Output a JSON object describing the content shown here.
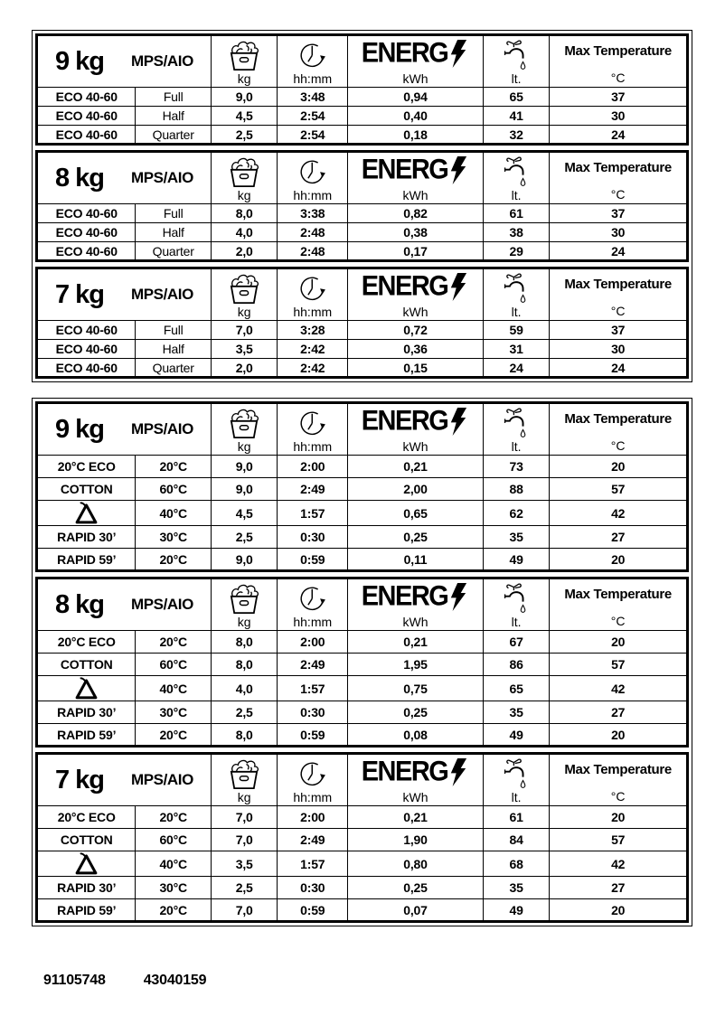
{
  "header_labels": {
    "energy_logo_text": "ENERG",
    "max_temp": "Max Temperature",
    "units": {
      "load": "kg",
      "time": "hh:mm",
      "energy": "kWh",
      "water": "lt.",
      "temp": "°C"
    }
  },
  "icons": {
    "load": "laundry-basket-icon",
    "time": "cycle-duration-clock-icon",
    "energy": "lightning-bolt-icon",
    "water": "water-tap-drop-icon",
    "synthetics": "synthetics-triangle-program-icon"
  },
  "groups": [
    {
      "name": "eco-40-60-tables",
      "tables": [
        {
          "capacity": "9 kg",
          "model": "MPS/AIO",
          "rows": [
            {
              "program": "ECO 40-60",
              "variant": "Full",
              "load": "9,0",
              "time": "3:48",
              "energy": "0,94",
              "water": "65",
              "temp": "37"
            },
            {
              "program": "ECO 40-60",
              "variant": "Half",
              "load": "4,5",
              "time": "2:54",
              "energy": "0,40",
              "water": "41",
              "temp": "30"
            },
            {
              "program": "ECO 40-60",
              "variant": "Quarter",
              "load": "2,5",
              "time": "2:54",
              "energy": "0,18",
              "water": "32",
              "temp": "24"
            }
          ]
        },
        {
          "capacity": "8 kg",
          "model": "MPS/AIO",
          "rows": [
            {
              "program": "ECO 40-60",
              "variant": "Full",
              "load": "8,0",
              "time": "3:38",
              "energy": "0,82",
              "water": "61",
              "temp": "37"
            },
            {
              "program": "ECO 40-60",
              "variant": "Half",
              "load": "4,0",
              "time": "2:48",
              "energy": "0,38",
              "water": "38",
              "temp": "30"
            },
            {
              "program": "ECO 40-60",
              "variant": "Quarter",
              "load": "2,0",
              "time": "2:48",
              "energy": "0,17",
              "water": "29",
              "temp": "24"
            }
          ]
        },
        {
          "capacity": "7 kg",
          "model": "MPS/AIO",
          "rows": [
            {
              "program": "ECO 40-60",
              "variant": "Full",
              "load": "7,0",
              "time": "3:28",
              "energy": "0,72",
              "water": "59",
              "temp": "37"
            },
            {
              "program": "ECO 40-60",
              "variant": "Half",
              "load": "3,5",
              "time": "2:42",
              "energy": "0,36",
              "water": "31",
              "temp": "30"
            },
            {
              "program": "ECO 40-60",
              "variant": "Quarter",
              "load": "2,0",
              "time": "2:42",
              "energy": "0,15",
              "water": "24",
              "temp": "24"
            }
          ]
        }
      ]
    },
    {
      "name": "program-tables",
      "tables": [
        {
          "capacity": "9 kg",
          "model": "MPS/AIO",
          "rows": [
            {
              "program": "20°C ECO",
              "variant": "20°C",
              "load": "9,0",
              "time": "2:00",
              "energy": "0,21",
              "water": "73",
              "temp": "20"
            },
            {
              "program": "COTTON",
              "variant": "60°C",
              "load": "9,0",
              "time": "2:49",
              "energy": "2,00",
              "water": "88",
              "temp": "57"
            },
            {
              "program": "",
              "program_icon": "synthetics-triangle-program-icon",
              "variant": "40°C",
              "load": "4,5",
              "time": "1:57",
              "energy": "0,65",
              "water": "62",
              "temp": "42"
            },
            {
              "program": "RAPID 30’",
              "variant": "30°C",
              "load": "2,5",
              "time": "0:30",
              "energy": "0,25",
              "water": "35",
              "temp": "27"
            },
            {
              "program": "RAPID 59’",
              "variant": "20°C",
              "load": "9,0",
              "time": "0:59",
              "energy": "0,11",
              "water": "49",
              "temp": "20"
            }
          ]
        },
        {
          "capacity": "8 kg",
          "model": "MPS/AIO",
          "rows": [
            {
              "program": "20°C ECO",
              "variant": "20°C",
              "load": "8,0",
              "time": "2:00",
              "energy": "0,21",
              "water": "67",
              "temp": "20"
            },
            {
              "program": "COTTON",
              "variant": "60°C",
              "load": "8,0",
              "time": "2:49",
              "energy": "1,95",
              "water": "86",
              "temp": "57"
            },
            {
              "program": "",
              "program_icon": "synthetics-triangle-program-icon",
              "variant": "40°C",
              "load": "4,0",
              "time": "1:57",
              "energy": "0,75",
              "water": "65",
              "temp": "42"
            },
            {
              "program": "RAPID 30’",
              "variant": "30°C",
              "load": "2,5",
              "time": "0:30",
              "energy": "0,25",
              "water": "35",
              "temp": "27"
            },
            {
              "program": "RAPID 59’",
              "variant": "20°C",
              "load": "8,0",
              "time": "0:59",
              "energy": "0,08",
              "water": "49",
              "temp": "20"
            }
          ]
        },
        {
          "capacity": "7 kg",
          "model": "MPS/AIO",
          "rows": [
            {
              "program": "20°C ECO",
              "variant": "20°C",
              "load": "7,0",
              "time": "2:00",
              "energy": "0,21",
              "water": "61",
              "temp": "20"
            },
            {
              "program": "COTTON",
              "variant": "60°C",
              "load": "7,0",
              "time": "2:49",
              "energy": "1,90",
              "water": "84",
              "temp": "57"
            },
            {
              "program": "",
              "program_icon": "synthetics-triangle-program-icon",
              "variant": "40°C",
              "load": "3,5",
              "time": "1:57",
              "energy": "0,80",
              "water": "68",
              "temp": "42"
            },
            {
              "program": "RAPID 30’",
              "variant": "30°C",
              "load": "2,5",
              "time": "0:30",
              "energy": "0,25",
              "water": "35",
              "temp": "27"
            },
            {
              "program": "RAPID 59’",
              "variant": "20°C",
              "load": "7,0",
              "time": "0:59",
              "energy": "0,07",
              "water": "49",
              "temp": "20"
            }
          ]
        }
      ]
    }
  ],
  "footer": {
    "codes": [
      "91105748",
      "43040159"
    ]
  }
}
